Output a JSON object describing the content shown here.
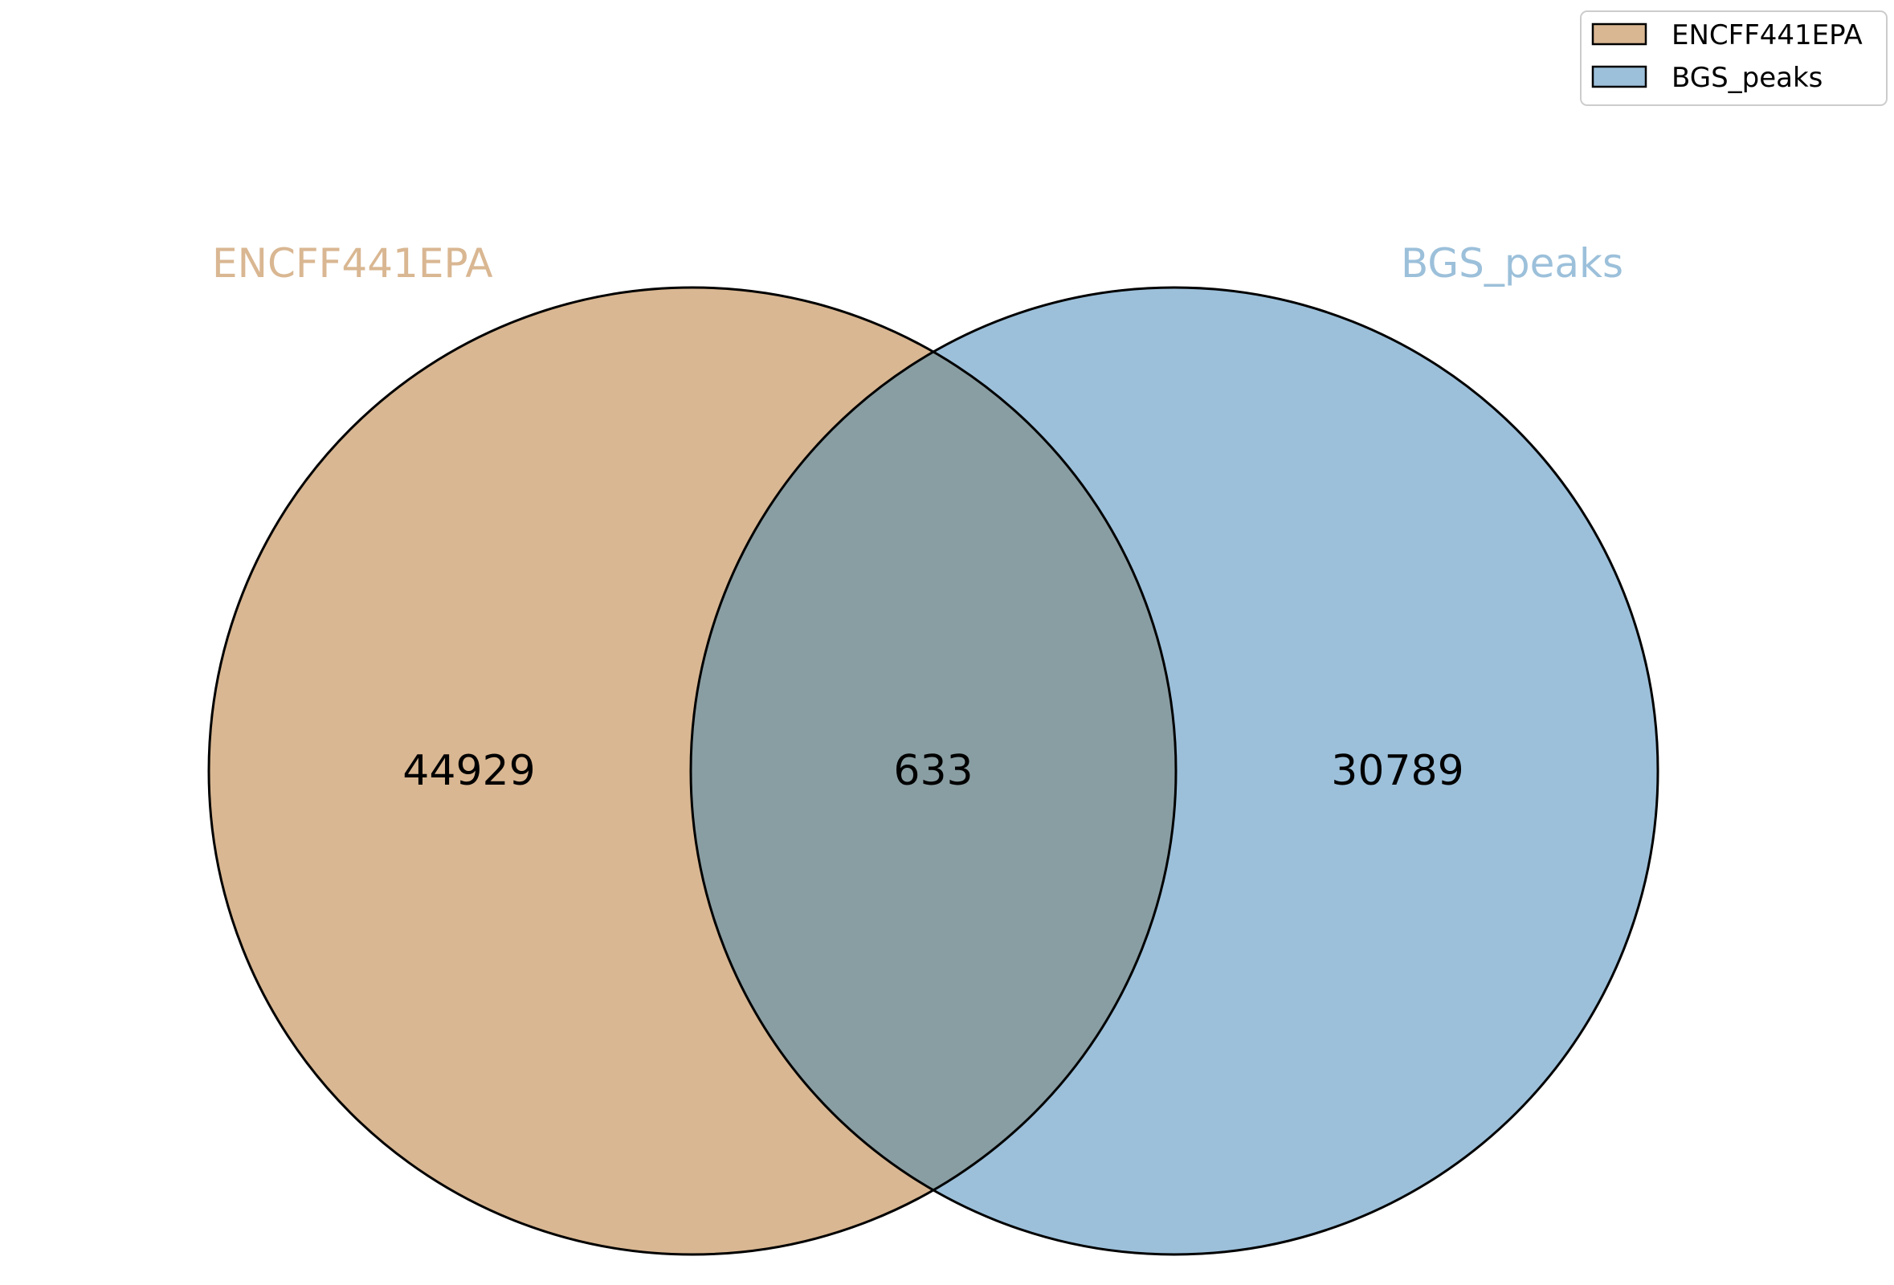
{
  "chart_data": {
    "type": "venn",
    "sets": [
      {
        "name": "ENCFF441EPA",
        "color": "#d9b792"
      },
      {
        "name": "BGS_peaks",
        "color": "#9cc0da"
      }
    ],
    "overlap_color": "#899ea3",
    "regions": {
      "only_a": "44929",
      "intersection": "633",
      "only_b": "30789"
    },
    "legend": {
      "placement": "top-right",
      "entries": [
        "ENCFF441EPA",
        "BGS_peaks"
      ]
    }
  }
}
